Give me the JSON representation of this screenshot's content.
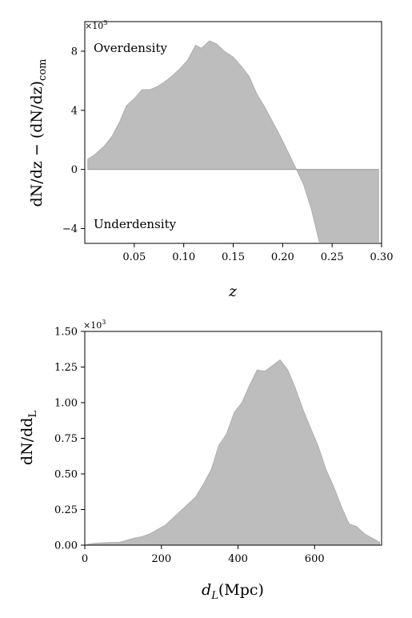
{
  "chart_data": [
    {
      "type": "area",
      "xlabel": "z",
      "ylabel": "dN/dz − (dN/dz)com",
      "ylabel_parts": {
        "main": "dN/dz − (dN/dz)",
        "sub": "com"
      },
      "multiplier": "×10³",
      "multiplier_parts": {
        "base": "×10",
        "exp": "3"
      },
      "xlim": [
        0.0,
        0.3
      ],
      "ylim": [
        -5000,
        10000
      ],
      "xticks": [
        0.05,
        0.1,
        0.15,
        0.2,
        0.25,
        0.3
      ],
      "xtick_labels": [
        "0.05",
        "0.10",
        "0.15",
        "0.20",
        "0.25",
        "0.30"
      ],
      "yticks": [
        -4000,
        0,
        4000,
        8000
      ],
      "ytick_labels": [
        "−4",
        "0",
        "4",
        "8"
      ],
      "annotations": [
        "Overdensity",
        "Underdensity"
      ],
      "grid": false,
      "color": "#bdbdbd",
      "x": [
        0.003,
        0.01,
        0.02,
        0.028,
        0.035,
        0.042,
        0.05,
        0.058,
        0.066,
        0.073,
        0.08,
        0.088,
        0.096,
        0.104,
        0.112,
        0.118,
        0.126,
        0.133,
        0.141,
        0.15,
        0.158,
        0.166,
        0.174,
        0.182,
        0.19,
        0.198,
        0.206,
        0.214,
        0.221,
        0.229,
        0.237,
        0.245,
        0.253,
        0.261,
        0.269,
        0.277,
        0.285,
        0.297
      ],
      "y": [
        700,
        1000,
        1600,
        2300,
        3200,
        4300,
        4800,
        5400,
        5400,
        5600,
        5900,
        6300,
        6800,
        7400,
        8400,
        8200,
        8700,
        8500,
        8000,
        7600,
        7000,
        6300,
        5100,
        4200,
        3200,
        2200,
        1100,
        0,
        -1000,
        -2700,
        -4900,
        -4900,
        -4900,
        -4900,
        -4900,
        -4900,
        -4900,
        -4900
      ]
    },
    {
      "type": "area",
      "xlabel": "dL(Mpc)",
      "xlabel_parts": {
        "main": "d",
        "sub": "L",
        "rest": "(Mpc)"
      },
      "ylabel": "dN/ddL",
      "ylabel_parts": {
        "main": "dN/dd",
        "sub": "L"
      },
      "multiplier": "×10³",
      "multiplier_parts": {
        "base": "×10",
        "exp": "3"
      },
      "xlim": [
        0,
        775
      ],
      "ylim": [
        0,
        1500
      ],
      "xticks": [
        0,
        200,
        400,
        600
      ],
      "xtick_labels": [
        "0",
        "200",
        "400",
        "600"
      ],
      "yticks": [
        0,
        250,
        500,
        750,
        1000,
        1250,
        1500
      ],
      "ytick_labels": [
        "0.00",
        "0.25",
        "0.50",
        "0.75",
        "1.00",
        "1.25",
        "1.50"
      ],
      "grid": false,
      "color": "#bdbdbd",
      "x": [
        5,
        20,
        40,
        60,
        90,
        110,
        130,
        150,
        170,
        190,
        210,
        230,
        250,
        270,
        290,
        310,
        330,
        350,
        370,
        390,
        410,
        430,
        450,
        470,
        490,
        510,
        530,
        550,
        570,
        590,
        610,
        630,
        650,
        670,
        690,
        710,
        730,
        750,
        770
      ],
      "y": [
        5,
        12,
        15,
        18,
        20,
        35,
        50,
        60,
        80,
        110,
        140,
        190,
        240,
        290,
        340,
        430,
        530,
        700,
        780,
        930,
        1000,
        1120,
        1230,
        1220,
        1260,
        1300,
        1230,
        1100,
        950,
        820,
        690,
        530,
        410,
        270,
        150,
        130,
        80,
        50,
        20
      ]
    }
  ]
}
